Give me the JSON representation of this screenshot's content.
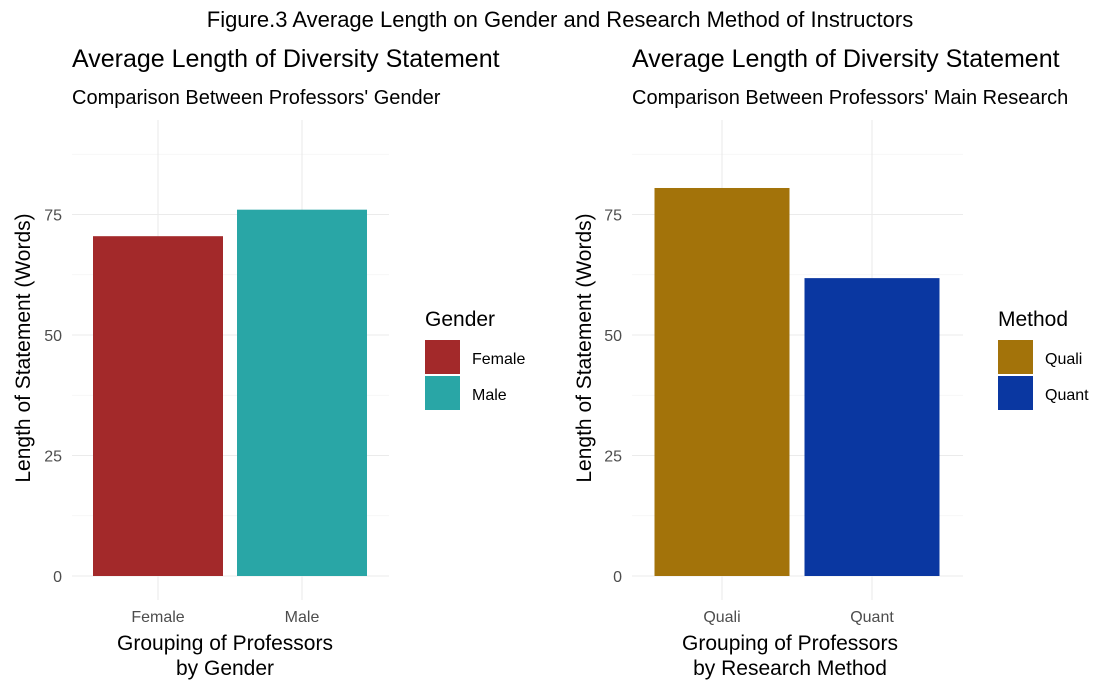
{
  "figure_title": "Figure.3 Average Length on Gender and Research Method of Instructors",
  "chart_data": [
    {
      "type": "bar",
      "title": "Average Length of Diversity Statement",
      "subtitle": "Comparison Between Professors' Gender",
      "categories": [
        "Female",
        "Male"
      ],
      "values": [
        70.5,
        76
      ],
      "colors": [
        "#a3292a",
        "#29a6a6"
      ],
      "xlabel": "Grouping of Professors\nby Gender",
      "ylabel": "Length of Statement (Words)",
      "ylim": [
        0,
        80
      ],
      "yticks": [
        0,
        25,
        50,
        75
      ],
      "grid": true,
      "legend": {
        "title": "Gender",
        "position": "right",
        "items": [
          {
            "label": "Female",
            "color": "#a3292a"
          },
          {
            "label": "Male",
            "color": "#29a6a6"
          }
        ]
      }
    },
    {
      "type": "bar",
      "title": "Average Length of Diversity Statement",
      "subtitle": "Comparison Between Professors' Main Research",
      "categories": [
        "Quali",
        "Quant"
      ],
      "values": [
        80.5,
        61.8
      ],
      "colors": [
        "#a3730a",
        "#0a37a1"
      ],
      "xlabel": "Grouping of Professors\nby Research Method",
      "ylabel": "Length of Statement (Words)",
      "ylim": [
        0,
        80
      ],
      "yticks": [
        0,
        25,
        50,
        75
      ],
      "grid": true,
      "legend": {
        "title": "Method",
        "position": "right",
        "items": [
          {
            "label": "Quali",
            "color": "#a3730a"
          },
          {
            "label": "Quant",
            "color": "#0a37a1"
          }
        ]
      }
    }
  ]
}
